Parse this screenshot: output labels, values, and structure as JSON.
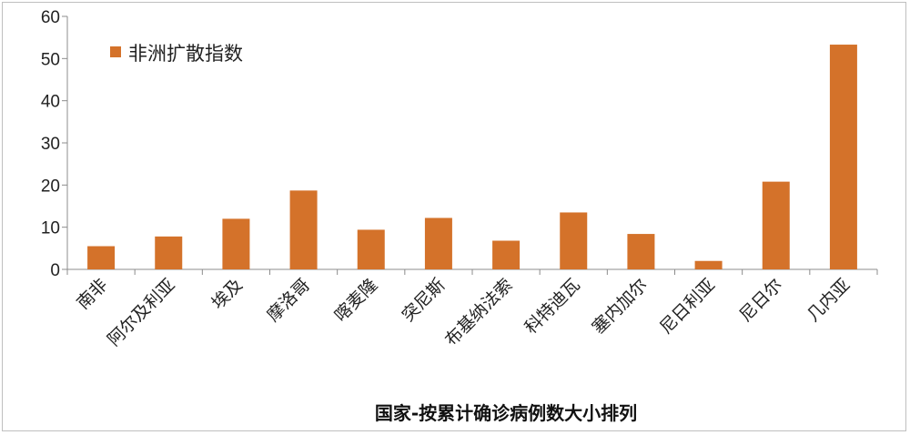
{
  "chart_data": {
    "type": "bar",
    "title": "",
    "xlabel": "国家-按累计确诊病例数大小排列",
    "ylabel": "",
    "ylim": [
      0,
      60
    ],
    "yticks": [
      0,
      10,
      20,
      30,
      40,
      50,
      60
    ],
    "grid": false,
    "legend_position": "top-left",
    "categories": [
      "南非",
      "阿尔及利亚",
      "埃及",
      "摩洛哥",
      "喀麦隆",
      "突尼斯",
      "布基纳法索",
      "科特迪瓦",
      "塞内加尔",
      "尼日利亚",
      "尼日尔",
      "几内亚"
    ],
    "series": [
      {
        "name": "非洲扩散指数",
        "color": "#d4722a",
        "values": [
          5.5,
          7.8,
          12,
          18.7,
          9.4,
          12.2,
          6.8,
          13.5,
          8.4,
          2,
          20.8,
          53.3
        ]
      }
    ]
  }
}
